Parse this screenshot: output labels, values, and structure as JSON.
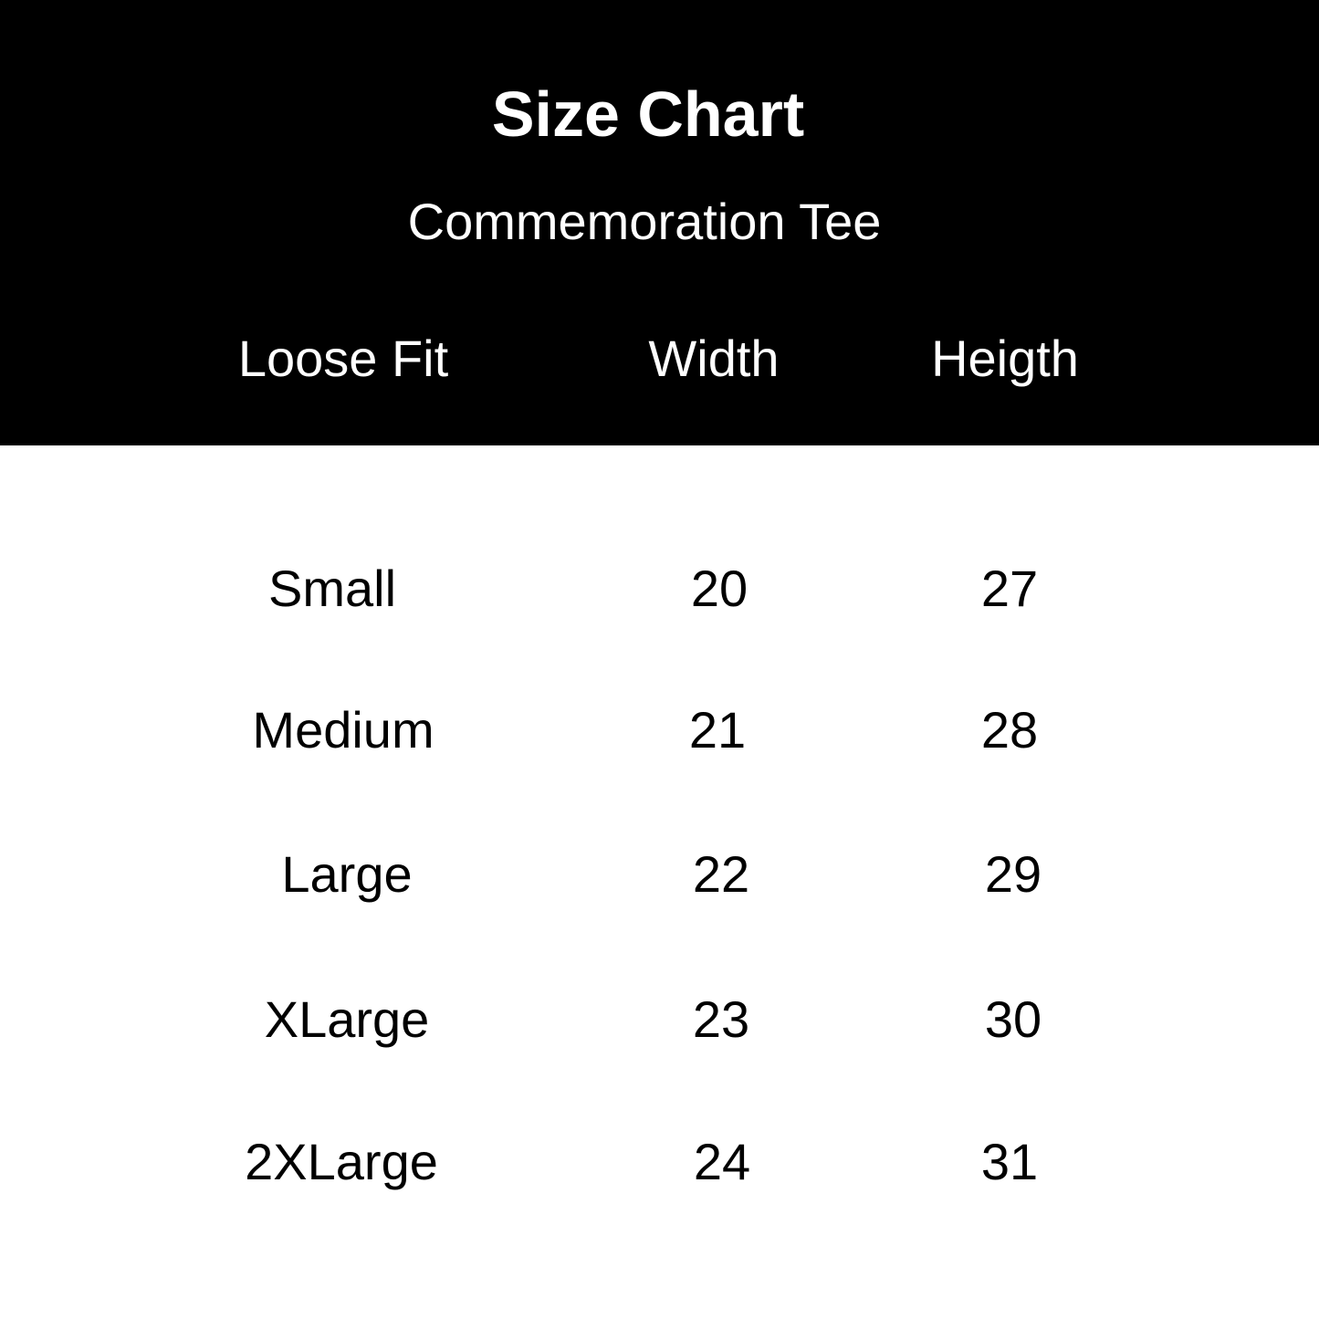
{
  "title": "Size Chart",
  "subtitle": "Commemoration Tee",
  "colors": {
    "header_bg": "#000000",
    "header_text": "#ffffff",
    "body_bg": "#ffffff",
    "body_text": "#000000"
  },
  "table": {
    "headers": [
      "Loose Fit",
      "Width",
      "Heigth"
    ],
    "rows": [
      [
        "Small",
        "20",
        "27"
      ],
      [
        "Medium",
        "21",
        "28"
      ],
      [
        "Large",
        "22",
        "29"
      ],
      [
        "XLarge",
        "23",
        "30"
      ],
      [
        "2XLarge",
        "24",
        "31"
      ]
    ]
  }
}
